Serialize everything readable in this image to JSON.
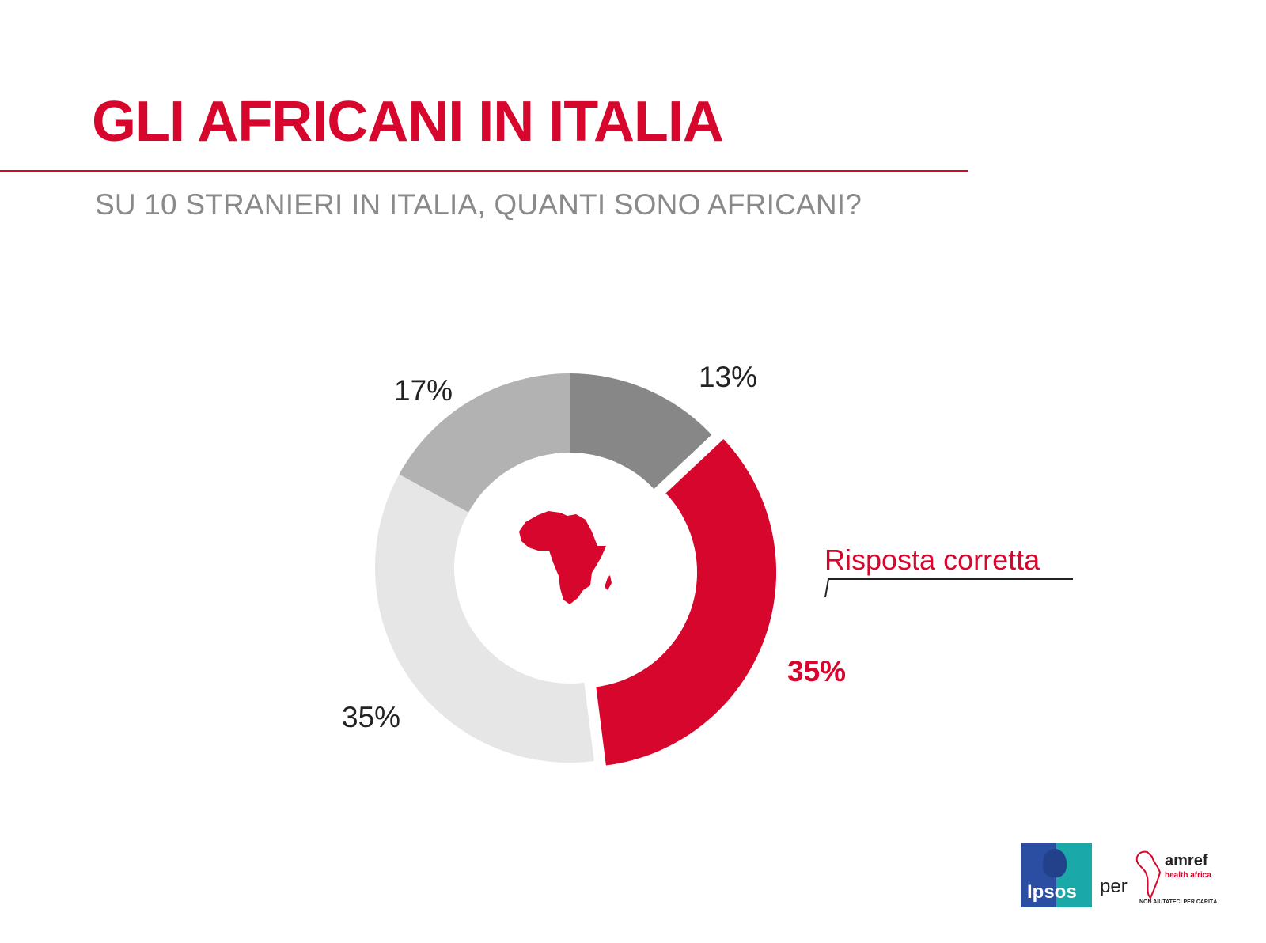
{
  "title": "GLI AFRICANI IN ITALIA",
  "subtitle": "SU 10 STRANIERI IN ITALIA, QUANTI SONO AFRICANI?",
  "colors": {
    "accent": "#d6062c",
    "dark_gray": "#878787",
    "mid_gray": "#b2b2b2",
    "light_gray": "#e6e6e6",
    "rule": "#d6062c"
  },
  "center_icon": "africa-map-icon",
  "answer_label": "Risposta corretta",
  "chart_data": {
    "type": "pie",
    "variant": "donut",
    "slices": [
      {
        "label": "13%",
        "value": 13,
        "color": "#878787"
      },
      {
        "label": "35%",
        "value": 35,
        "color": "#d6062c",
        "correct": true
      },
      {
        "label": "35%",
        "value": 35,
        "color": "#e6e6e6"
      },
      {
        "label": "17%",
        "value": 17,
        "color": "#b2b2b2"
      }
    ]
  },
  "logos": {
    "ipsos": "Ipsos",
    "connector": "per",
    "amref_name": "amref",
    "amref_sub": "health africa",
    "amref_tagline": "NON AIUTATECI PER CARITÀ"
  }
}
